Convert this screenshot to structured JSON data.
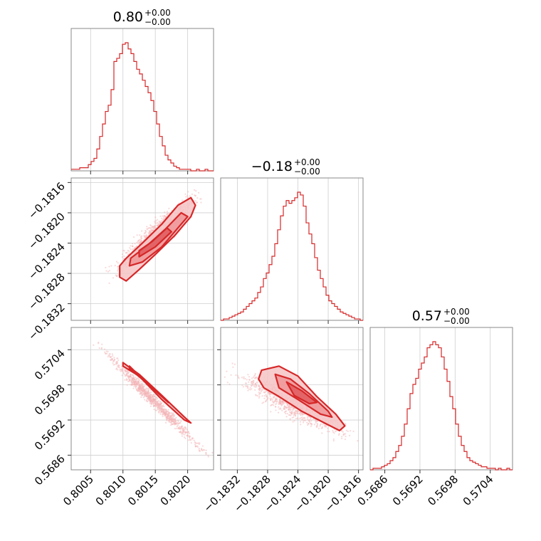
{
  "chart_data": [
    {
      "type": "histogram",
      "panel": "hist-param-1",
      "title": {
        "value": "0.80",
        "plus": "+0.00",
        "minus": "−0.00"
      },
      "xlim": [
        0.8002,
        0.8024
      ],
      "xticks": [
        0.8005,
        0.801,
        0.8015,
        0.802
      ],
      "xtick_labels": [
        "0.8005",
        "0.8010",
        "0.8015",
        "0.8020"
      ],
      "bin_edges_range": [
        0.8002,
        0.8024
      ],
      "counts": [
        1,
        1,
        1,
        2,
        2,
        2,
        4,
        6,
        8,
        14,
        22,
        30,
        38,
        42,
        52,
        70,
        72,
        75,
        81,
        82,
        78,
        75,
        70,
        65,
        62,
        58,
        54,
        50,
        45,
        38,
        30,
        22,
        16,
        10,
        7,
        5,
        3,
        2,
        1,
        1,
        1,
        1,
        0,
        0,
        1,
        0,
        0,
        1,
        0,
        0
      ]
    },
    {
      "type": "histogram",
      "panel": "hist-param-2",
      "title": {
        "value": "−0.18",
        "plus": "+0.00",
        "minus": "−0.00"
      },
      "xlim": [
        -0.18342,
        -0.18154
      ],
      "xticks": [
        -0.1832,
        -0.1828,
        -0.1824,
        -0.182,
        -0.1816
      ],
      "xtick_labels": [
        "−0.1832",
        "−0.1828",
        "−0.1824",
        "−0.1820",
        "−0.1816"
      ],
      "bin_edges_range": [
        -0.18342,
        -0.18154
      ],
      "counts": [
        0,
        1,
        1,
        2,
        3,
        4,
        5,
        6,
        8,
        10,
        12,
        14,
        16,
        20,
        24,
        30,
        34,
        40,
        46,
        55,
        65,
        75,
        82,
        86,
        84,
        86,
        88,
        92,
        90,
        82,
        70,
        62,
        55,
        45,
        36,
        30,
        24,
        18,
        14,
        12,
        10,
        8,
        6,
        5,
        4,
        3,
        2,
        1,
        1,
        0
      ]
    },
    {
      "type": "histogram",
      "panel": "hist-param-3",
      "title": {
        "value": "0.57",
        "plus": "+0.00",
        "minus": "−0.00"
      },
      "xlim": [
        0.56835,
        0.57078
      ],
      "xticks": [
        0.5686,
        0.5692,
        0.5698,
        0.5704
      ],
      "xtick_labels": [
        "0.5686",
        "0.5692",
        "0.5698",
        "0.5704"
      ],
      "bin_edges_range": [
        0.56835,
        0.57078
      ],
      "counts": [
        0,
        1,
        1,
        1,
        2,
        3,
        4,
        6,
        8,
        12,
        16,
        22,
        30,
        40,
        50,
        56,
        60,
        66,
        70,
        74,
        80,
        82,
        84,
        82,
        80,
        74,
        66,
        58,
        48,
        40,
        30,
        22,
        16,
        12,
        8,
        6,
        5,
        4,
        3,
        2,
        2,
        1,
        1,
        1,
        0,
        1,
        0,
        0,
        1,
        0
      ]
    },
    {
      "type": "scatter",
      "panel": "joint-p1-p2",
      "xlim": [
        0.8002,
        0.8024
      ],
      "ylim": [
        -0.18342,
        -0.18154
      ],
      "yticks": [
        -0.1816,
        -0.182,
        -0.1824,
        -0.1828,
        -0.1832
      ],
      "ytick_labels": [
        "−0.1816",
        "−0.1820",
        "−0.1824",
        "−0.1828",
        "−0.1832"
      ],
      "correlation": 0.93,
      "ridge": [
        [
          0.8009,
          -0.18275
        ],
        [
          0.8012,
          -0.18255
        ],
        [
          0.8015,
          -0.18235
        ],
        [
          0.8018,
          -0.1821
        ],
        [
          0.8021,
          -0.1818
        ]
      ],
      "contours": [
        [
          [
            0.80095,
            -0.18285
          ],
          [
            0.80105,
            -0.1829
          ],
          [
            0.80125,
            -0.18275
          ],
          [
            0.8015,
            -0.18255
          ],
          [
            0.8018,
            -0.1823
          ],
          [
            0.80205,
            -0.18205
          ],
          [
            0.80212,
            -0.1819
          ],
          [
            0.80205,
            -0.1818
          ],
          [
            0.80185,
            -0.1819
          ],
          [
            0.8016,
            -0.18215
          ],
          [
            0.8013,
            -0.1824
          ],
          [
            0.80105,
            -0.1826
          ],
          [
            0.80095,
            -0.1827
          ]
        ],
        [
          [
            0.8011,
            -0.1827
          ],
          [
            0.8013,
            -0.18265
          ],
          [
            0.8016,
            -0.18245
          ],
          [
            0.8019,
            -0.18215
          ],
          [
            0.802,
            -0.18205
          ],
          [
            0.8019,
            -0.182
          ],
          [
            0.80165,
            -0.18222
          ],
          [
            0.80135,
            -0.18245
          ],
          [
            0.80112,
            -0.1826
          ]
        ],
        [
          [
            0.80125,
            -0.18258
          ],
          [
            0.8015,
            -0.18245
          ],
          [
            0.80175,
            -0.18225
          ],
          [
            0.80168,
            -0.1822
          ],
          [
            0.80145,
            -0.18238
          ],
          [
            0.80125,
            -0.1825
          ]
        ]
      ]
    },
    {
      "type": "scatter",
      "panel": "joint-p1-p3",
      "xlim": [
        0.8002,
        0.8024
      ],
      "ylim": [
        0.56835,
        0.57078
      ],
      "yticks": [
        0.5704,
        0.5698,
        0.5692,
        0.5686
      ],
      "ytick_labels": [
        "0.5704",
        "0.5698",
        "0.5692",
        "0.5686"
      ],
      "correlation": -0.99,
      "ridge": [
        [
          0.8007,
          0.5704
        ],
        [
          0.8011,
          0.57005
        ],
        [
          0.8015,
          0.56955
        ],
        [
          0.8019,
          0.5691
        ],
        [
          0.8022,
          0.5687
        ]
      ],
      "contours": [
        [
          [
            0.801,
            0.57012
          ],
          [
            0.80125,
            0.56995
          ],
          [
            0.8016,
            0.56955
          ],
          [
            0.80195,
            0.5692
          ],
          [
            0.80205,
            0.56915
          ],
          [
            0.80195,
            0.56925
          ],
          [
            0.8016,
            0.56962
          ],
          [
            0.80125,
            0.56998
          ],
          [
            0.801,
            0.57018
          ]
        ],
        [
          [
            0.8011,
            0.57008
          ],
          [
            0.8014,
            0.5698
          ],
          [
            0.8017,
            0.5695
          ],
          [
            0.80165,
            0.56955
          ],
          [
            0.80135,
            0.56985
          ],
          [
            0.8011,
            0.57012
          ]
        ]
      ]
    },
    {
      "type": "scatter",
      "panel": "joint-p2-p3",
      "xlim": [
        -0.18342,
        -0.18154
      ],
      "ylim": [
        0.56835,
        0.57078
      ],
      "correlation": -0.88,
      "ridge": [
        [
          -0.1832,
          0.56995
        ],
        [
          -0.1828,
          0.56985
        ],
        [
          -0.1824,
          0.56955
        ],
        [
          -0.182,
          0.5692
        ],
        [
          -0.1818,
          0.569
        ]
      ],
      "contours": [
        [
          [
            -0.18288,
            0.57005
          ],
          [
            -0.18265,
            0.57012
          ],
          [
            -0.1824,
            0.56995
          ],
          [
            -0.18215,
            0.5696
          ],
          [
            -0.1819,
            0.5693
          ],
          [
            -0.18178,
            0.5691
          ],
          [
            -0.18185,
            0.56902
          ],
          [
            -0.18205,
            0.56915
          ],
          [
            -0.18235,
            0.56935
          ],
          [
            -0.18265,
            0.5696
          ],
          [
            -0.18285,
            0.56975
          ],
          [
            -0.18292,
            0.5699
          ]
        ],
        [
          [
            -0.1827,
            0.56998
          ],
          [
            -0.1825,
            0.5699
          ],
          [
            -0.18225,
            0.56965
          ],
          [
            -0.182,
            0.56935
          ],
          [
            -0.18195,
            0.56925
          ],
          [
            -0.1821,
            0.5693
          ],
          [
            -0.1824,
            0.56955
          ],
          [
            -0.18265,
            0.56975
          ]
        ],
        [
          [
            -0.18255,
            0.56985
          ],
          [
            -0.18235,
            0.5697
          ],
          [
            -0.18215,
            0.5695
          ],
          [
            -0.18225,
            0.56948
          ],
          [
            -0.18245,
            0.56962
          ]
        ]
      ]
    }
  ],
  "colors": {
    "primary": "#d62728",
    "fill_light": "#f6c3c4",
    "scatter": "#f3b3b5",
    "grid": "#cfcfcf",
    "frame": "#888888"
  }
}
